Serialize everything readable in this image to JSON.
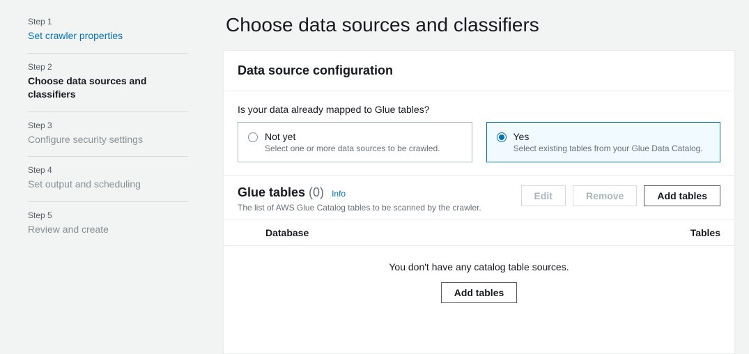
{
  "steps": [
    {
      "num": "Step 1",
      "title": "Set crawler properties",
      "state": "link"
    },
    {
      "num": "Step 2",
      "title": "Choose data sources and classifiers",
      "state": "active"
    },
    {
      "num": "Step 3",
      "title": "Configure security settings",
      "state": "future"
    },
    {
      "num": "Step 4",
      "title": "Set output and scheduling",
      "state": "future"
    },
    {
      "num": "Step 5",
      "title": "Review and create",
      "state": "future"
    }
  ],
  "page": {
    "title": "Choose data sources and classifiers"
  },
  "dsconfig": {
    "heading": "Data source configuration",
    "question": "Is your data already mapped to Glue tables?",
    "options": {
      "not_yet": {
        "label": "Not yet",
        "desc": "Select one or more data sources to be crawled."
      },
      "yes": {
        "label": "Yes",
        "desc": "Select existing tables from your Glue Data Catalog."
      }
    },
    "selected": "yes"
  },
  "glueTables": {
    "title": "Glue tables",
    "count": "(0)",
    "info": "Info",
    "sub": "The list of AWS Glue Catalog tables to be scanned by the crawler.",
    "buttons": {
      "edit": "Edit",
      "remove": "Remove",
      "add": "Add tables"
    },
    "columns": {
      "database": "Database",
      "tables": "Tables"
    },
    "emptyMsg": "You don't have any catalog table sources.",
    "emptyAdd": "Add tables"
  },
  "colors": {
    "background": "#f2f3f3",
    "panel": "#ffffff",
    "border": "#eaeded",
    "text": "#16191f",
    "muted": "#687078",
    "link": "#0073bb",
    "selectedBg": "#f1faff",
    "disabled": "#aab7b8"
  }
}
